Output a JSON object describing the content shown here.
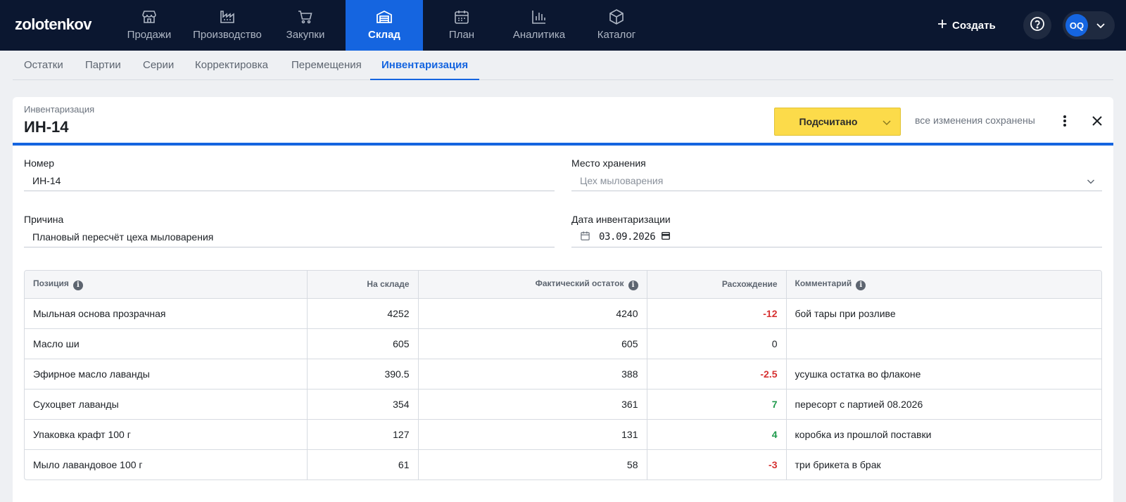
{
  "brand": "zolotenkov",
  "nav": [
    {
      "label": "Продажи",
      "icon": "store-icon"
    },
    {
      "label": "Производство",
      "icon": "factory-icon"
    },
    {
      "label": "Закупки",
      "icon": "cart-icon"
    },
    {
      "label": "Склад",
      "icon": "warehouse-icon",
      "active": true
    },
    {
      "label": "План",
      "icon": "calendar-icon"
    },
    {
      "label": "Аналитика",
      "icon": "bar-chart-icon"
    },
    {
      "label": "Каталог",
      "icon": "cube-icon"
    }
  ],
  "header": {
    "create_label": "Создать",
    "avatar_initials": "OQ"
  },
  "subtabs": [
    {
      "label": "Остатки"
    },
    {
      "label": "Партии"
    },
    {
      "label": "Серии"
    },
    {
      "label": "Корректировка"
    },
    {
      "label": "Перемещения"
    },
    {
      "label": "Инвентаризация",
      "active": true
    }
  ],
  "doc": {
    "kind": "Инвентаризация",
    "title": "ИН-14",
    "status": "Подсчитано",
    "save_state": "все изменения сохранены"
  },
  "form": {
    "number_label": "Номер",
    "number_value": "ИН-14",
    "storage_label": "Место хранения",
    "storage_placeholder": "Цех мыловарения",
    "reason_label": "Причина",
    "reason_value": "Плановый пересчёт цеха мыловарения",
    "date_label": "Дата инвентаризации",
    "date_value": "03.09.2026"
  },
  "table": {
    "headers": {
      "position": "Позиция",
      "in_stock": "На складе",
      "actual": "Фактический остаток",
      "diff": "Расхождение",
      "comment": "Комментарий"
    },
    "rows": [
      {
        "position": "Мыльная основа прозрачная",
        "in_stock": "4252",
        "actual": "4240",
        "diff": "-12",
        "comment": "бой тары при розливе"
      },
      {
        "position": "Масло ши",
        "in_stock": "605",
        "actual": "605",
        "diff": "0",
        "comment": ""
      },
      {
        "position": "Эфирное масло лаванды",
        "in_stock": "390.5",
        "actual": "388",
        "diff": "-2.5",
        "comment": "усушка остатка во флаконе"
      },
      {
        "position": "Сухоцвет лаванды",
        "in_stock": "354",
        "actual": "361",
        "diff": "7",
        "comment": "пересорт с партией 08.2026"
      },
      {
        "position": "Упаковка крафт 100 г",
        "in_stock": "127",
        "actual": "131",
        "diff": "4",
        "comment": "коробка из прошлой поставки"
      },
      {
        "position": "Мыло лавандовое 100 г",
        "in_stock": "61",
        "actual": "58",
        "diff": "-3",
        "comment": "три брикета в брак"
      }
    ]
  },
  "colors": {
    "accent": "#1565e0",
    "nav_bg": "#0b1730",
    "status_yellow": "#fcdb4a",
    "negative": "#d63131",
    "positive": "#1f9a4c"
  }
}
